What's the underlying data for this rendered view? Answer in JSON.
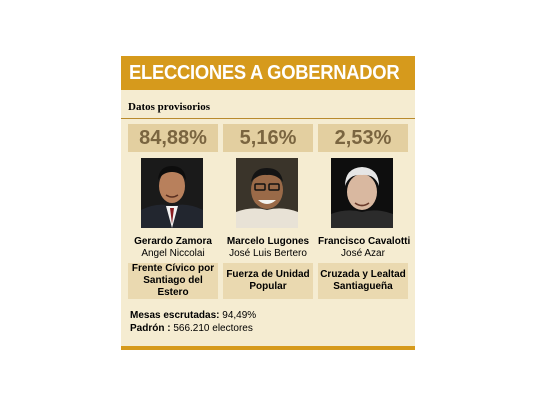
{
  "title": "ELECCIONES A GOBERNADOR",
  "subtitle": "Datos provisorios",
  "candidates": [
    {
      "percent": "84,88%",
      "name": "Gerardo Zamora",
      "vice": "Angel Niccolai",
      "party_line1": "Frente Cívico por",
      "party_line2": "Santiago del Estero"
    },
    {
      "percent": "5,16%",
      "name": "Marcelo Lugones",
      "vice": "José Luis Bertero",
      "party_line1": "Fuerza de Unidad",
      "party_line2": "Popular"
    },
    {
      "percent": "2,53%",
      "name": "Francisco Cavalotti",
      "vice": "José Azar",
      "party_line1": "Cruzada y Lealtad",
      "party_line2": "Santiagueña"
    }
  ],
  "footer": {
    "mesas_label": "Mesas escrutadas:",
    "mesas_value": "94,49%",
    "padron_label": "Padrón :",
    "padron_value": "566.210 electores"
  },
  "colors": {
    "header": "#d69a1c",
    "panel": "#f5ecd1",
    "percent_bg": "#e3cfa0",
    "party_bg": "#ead9b0"
  }
}
